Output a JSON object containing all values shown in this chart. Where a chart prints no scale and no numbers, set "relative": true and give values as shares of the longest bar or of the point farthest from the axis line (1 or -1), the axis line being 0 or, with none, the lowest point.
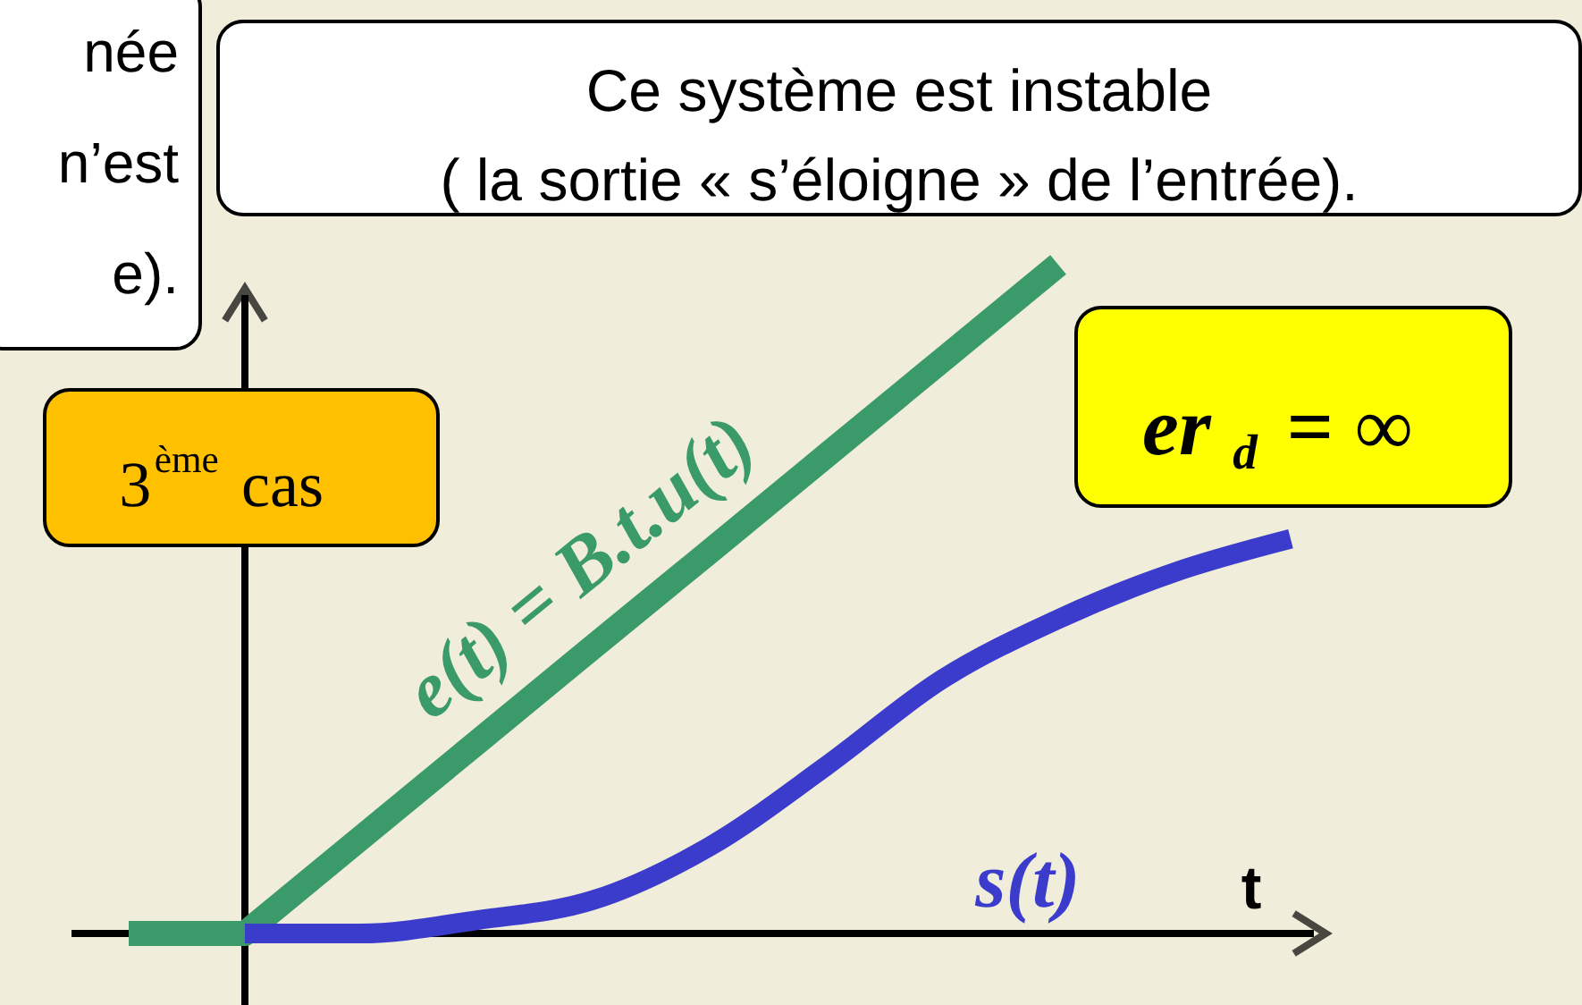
{
  "chart_data": {
    "type": "line",
    "relative": true,
    "xlabel": "t",
    "legend": false,
    "marker": "none",
    "line_style": "solid",
    "categories": [
      null,
      null,
      null,
      null,
      null,
      null,
      null,
      null,
      null,
      null,
      null
    ],
    "series": [
      {
        "name": "e(t) = B.t.u(t)",
        "color": "#3a9a6a",
        "values": [
          0,
          0,
          0.143,
          0.286,
          0.429,
          0.571,
          0.714,
          0.857,
          1,
          null,
          null
        ]
      },
      {
        "name": "s(t)",
        "color": "#3c3ccc",
        "values": [
          null,
          0,
          0,
          0.02,
          0.05,
          0.13,
          0.25,
          0.38,
          0.47,
          0.54,
          0.59
        ]
      }
    ],
    "annotations": [
      "née\nn’est\ne).",
      "Ce système est instable\n( la sortie « s’éloigne » de l’entrée).",
      "3$^{ème}$ cas",
      "er$_{d}$ = ∞"
    ]
  }
}
